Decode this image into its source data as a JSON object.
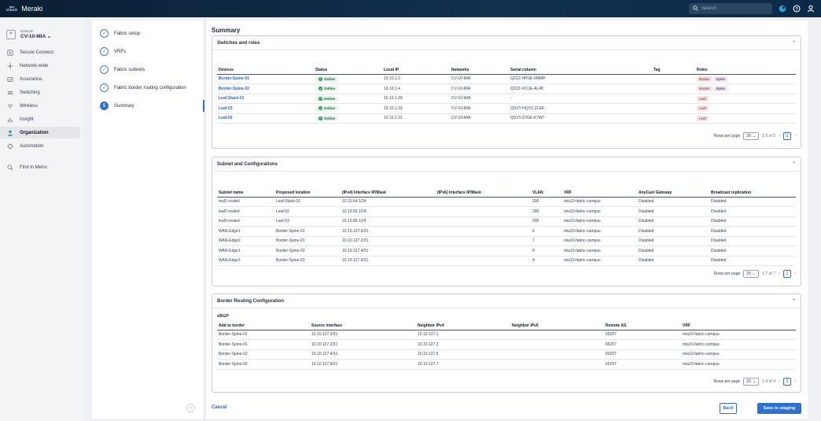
{
  "header": {
    "brand": "cisco",
    "app_name": "Meraki",
    "search_placeholder": "Search",
    "icons": [
      "search-icon",
      "notification-icon",
      "help-icon",
      "user-icon"
    ]
  },
  "network": {
    "label": "Network",
    "value": "CV-10-MIA"
  },
  "nav": {
    "items": [
      {
        "label": "Secure Connect",
        "icon": "secure-connect-icon"
      },
      {
        "label": "Network-wide",
        "icon": "network-wide-icon"
      },
      {
        "label": "Assurance",
        "icon": "assurance-icon"
      },
      {
        "label": "Switching",
        "icon": "switching-icon"
      },
      {
        "label": "Wireless",
        "icon": "wireless-icon"
      },
      {
        "label": "Insight",
        "icon": "insight-icon"
      },
      {
        "label": "Organization",
        "icon": "organization-icon",
        "active": true
      },
      {
        "label": "Automation",
        "icon": "automation-icon"
      }
    ],
    "find_in_menu": "Find in Menu"
  },
  "wizard": {
    "steps": [
      {
        "label": "Fabric setup",
        "state": "done"
      },
      {
        "label": "VRFs",
        "state": "done"
      },
      {
        "label": "Fabric subnets",
        "state": "done"
      },
      {
        "label": "Fabric border routing configuration",
        "state": "done"
      },
      {
        "label": "Summary",
        "state": "current",
        "number": "5"
      }
    ]
  },
  "summary": {
    "title": "Summary",
    "switches": {
      "title": "Switches and roles",
      "columns": [
        "Devices",
        "Status",
        "Local IP",
        "Networks",
        "Serial column",
        "Tag",
        "Roles"
      ],
      "rows": [
        {
          "device": "Border-Spine-01",
          "status": "Online",
          "ip": "10.10.1.2",
          "network": "CV-10-MIA",
          "serial": "Q2ZZ-HPDE-6MMP",
          "tag": "",
          "roles": [
            "Border",
            "Spine"
          ]
        },
        {
          "device": "Border-Spine-02",
          "status": "Online",
          "ip": "10.10.1.4",
          "network": "CV-10-MIA",
          "serial": "Q2ZZ-VCUE-AL48",
          "tag": "",
          "roles": [
            "Border",
            "Spine"
          ]
        },
        {
          "device": "Leaf-Stack-01",
          "status": "Online",
          "ip": "10.10.1.29",
          "network": "CV-10-MIA",
          "serial": "-",
          "tag": "",
          "roles": [
            "Leaf"
          ]
        },
        {
          "device": "Leaf-03",
          "status": "Online",
          "ip": "10.10.1.33",
          "network": "CV-10-MIA",
          "serial": "QSVY-HQYZ-ZLEK",
          "tag": "",
          "roles": [
            "Leaf"
          ]
        },
        {
          "device": "Leaf-02",
          "status": "Online",
          "ip": "10.10.1.31",
          "network": "CV-10-MIA",
          "serial": "QSVY-Z7GE-K7W7",
          "tag": "",
          "roles": [
            "Leaf"
          ]
        }
      ],
      "pager": {
        "label": "Rows per page",
        "size": "20",
        "range": "1-5 of 5",
        "page": "1"
      }
    },
    "subnets": {
      "title": "Subnet and Configurations",
      "columns": [
        "Subnet name",
        "Proposed location",
        "(IPv4) Interface IP/Mask",
        "(IPv6) Interface IP/Mask",
        "VLAN",
        "VRF",
        "AnyCast Gateway",
        "Broadcast replication"
      ],
      "rows": [
        [
          "leaf1-routed",
          "Leaf-Stack-01",
          "10.10.64.1/24",
          "",
          "200",
          "mia10-fabric-campus",
          "Disabled",
          "Disabled"
        ],
        [
          "leaf2-routed",
          "Leaf-02",
          "10.10.65.1/24",
          "",
          "200",
          "mia10-fabric-campus",
          "Disabled",
          "Disabled"
        ],
        [
          "leaf3-routed",
          "Leaf-03",
          "10.10.66.1/24",
          "",
          "200",
          "mia10-fabric-campus",
          "Disabled",
          "Disabled"
        ],
        [
          "WAN-Edge1",
          "Border-Spine-01",
          "10.10.127.0/31",
          "",
          "6",
          "mia10-fabric-campus",
          "Disabled",
          "Disabled"
        ],
        [
          "WAN-Edge2",
          "Border-Spine-01",
          "10.10.127.2/31",
          "",
          "7",
          "mia10-fabric-campus",
          "Disabled",
          "Disabled"
        ],
        [
          "WAN-Edge1",
          "Border-Spine-02",
          "10.10.127.4/31",
          "",
          "8",
          "mia10-fabric-campus",
          "Disabled",
          "Disabled"
        ],
        [
          "WAN-Edge2",
          "Border-Spine-02",
          "10.10.127.6/31",
          "",
          "9",
          "mia10-fabric-campus",
          "Disabled",
          "Disabled"
        ]
      ],
      "pager": {
        "label": "Rows per page",
        "size": "20",
        "range": "1-7 of 7",
        "page": "1"
      }
    },
    "border": {
      "title": "Border Routing Configuration",
      "sub_label": "eBGP",
      "columns": [
        "Add to border",
        "Source interface",
        "Neighbor IPv4",
        "Neighbor IPv6",
        "Remote AS",
        "VRF"
      ],
      "rows": [
        [
          "Border-Spine-01",
          "10.10.127.0/31",
          "10.10.127.1",
          "",
          "65207",
          "mia10-fabric-campus"
        ],
        [
          "Border-Spine-01",
          "10.10.127.2/31",
          "10.10.127.3",
          "",
          "65207",
          "mia10-fabric-campus"
        ],
        [
          "Border-Spine-02",
          "10.10.127.4/31",
          "10.10.127.5",
          "",
          "65207",
          "mia10-fabric-campus"
        ],
        [
          "Border-Spine-02",
          "10.10.127.6/31",
          "10.10.127.7",
          "",
          "65207",
          "mia10-fabric-campus"
        ]
      ],
      "pager": {
        "label": "Rows per page",
        "size": "20",
        "range": "1-4 of 4",
        "page": "1"
      }
    }
  },
  "footer": {
    "cancel": "Cancel",
    "back": "Back",
    "save": "Save to staging"
  },
  "colors": {
    "accent": "#2f6fd0",
    "online": "#22a04b",
    "topbar": "#0b1f33"
  }
}
